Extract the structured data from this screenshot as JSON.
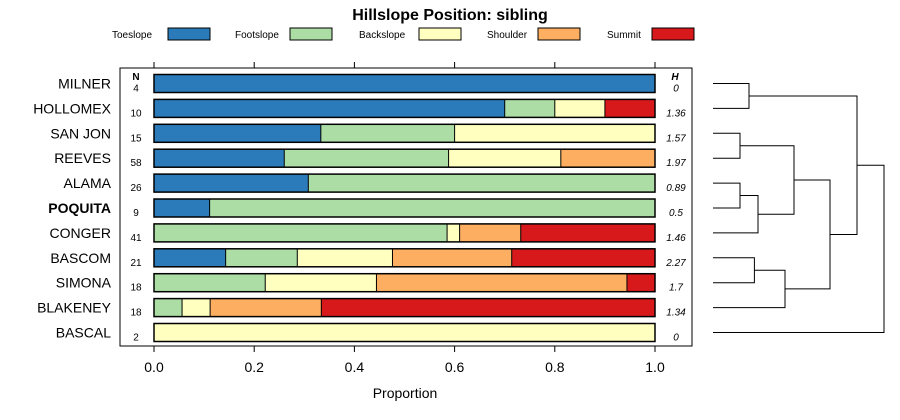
{
  "chart_data": {
    "type": "bar",
    "orientation": "horizontal",
    "stacked": true,
    "title": "Hillslope Position: sibling",
    "xlabel": "Proportion",
    "xlim": [
      0,
      1
    ],
    "x_ticks": [
      "0.0",
      "0.2",
      "0.4",
      "0.6",
      "0.8",
      "1.0"
    ],
    "n_header": "N",
    "h_header": "H",
    "highlight_row": "POQUITA",
    "categories": [
      "Toeslope",
      "Footslope",
      "Backslope",
      "Shoulder",
      "Summit"
    ],
    "colors": {
      "Toeslope": "#2b7bba",
      "Footslope": "#abdda4",
      "Backslope": "#ffffbf",
      "Shoulder": "#fdae61",
      "Summit": "#d7191c"
    },
    "rows": [
      {
        "name": "MILNER",
        "n": "4",
        "h": "0",
        "values": [
          1.0,
          0,
          0,
          0,
          0
        ]
      },
      {
        "name": "HOLLOMEX",
        "n": "10",
        "h": "1.36",
        "values": [
          0.7,
          0.1,
          0.1,
          0,
          0.1
        ]
      },
      {
        "name": "SAN JON",
        "n": "15",
        "h": "1.57",
        "values": [
          0.333,
          0.267,
          0.4,
          0,
          0
        ]
      },
      {
        "name": "REEVES",
        "n": "58",
        "h": "1.97",
        "values": [
          0.26,
          0.328,
          0.224,
          0.188,
          0
        ]
      },
      {
        "name": "ALAMA",
        "n": "26",
        "h": "0.89",
        "values": [
          0.308,
          0.692,
          0,
          0,
          0
        ]
      },
      {
        "name": "POQUITA",
        "n": "9",
        "h": "0.5",
        "values": [
          0.111,
          0.889,
          0,
          0,
          0
        ]
      },
      {
        "name": "CONGER",
        "n": "41",
        "h": "1.46",
        "values": [
          0,
          0.585,
          0.025,
          0.122,
          0.268
        ]
      },
      {
        "name": "BASCOM",
        "n": "21",
        "h": "2.27",
        "values": [
          0.143,
          0.143,
          0.19,
          0.238,
          0.286
        ]
      },
      {
        "name": "SIMONA",
        "n": "18",
        "h": "1.7",
        "values": [
          0,
          0.222,
          0.222,
          0.5,
          0.056
        ]
      },
      {
        "name": "BLAKENEY",
        "n": "18",
        "h": "1.34",
        "values": [
          0,
          0.056,
          0.056,
          0.222,
          0.666
        ]
      },
      {
        "name": "BASCAL",
        "n": "2",
        "h": "0",
        "values": [
          0,
          0,
          1.0,
          0,
          0
        ]
      }
    ],
    "dendrogram": {
      "merges": [
        {
          "a": "MILNER",
          "b": "HOLLOMEX",
          "height": 0.2
        },
        {
          "a": "SAN JON",
          "b": "REEVES",
          "height": 0.15
        },
        {
          "a": "ALAMA",
          "b": "POQUITA",
          "height": 0.15
        },
        {
          "a": "ALAMA|POQUITA",
          "b": "CONGER",
          "height": 0.25
        },
        {
          "a": "SAN JON|REEVES",
          "b": "ALAMA|POQUITA|CONGER",
          "height": 0.45
        },
        {
          "a": "BASCOM",
          "b": "SIMONA",
          "height": 0.23
        },
        {
          "a": "BASCOM|SIMONA",
          "b": "BLAKENEY",
          "height": 0.4
        },
        {
          "a": "SAN JON|REEVES|ALAMA|POQUITA|CONGER",
          "b": "BASCOM|SIMONA|BLAKENEY",
          "height": 0.65
        },
        {
          "a": "MILNER|HOLLOMEX",
          "b": "SAN JON|REEVES|ALAMA|POQUITA|CONGER|BASCOM|SIMONA|BLAKENEY",
          "height": 0.8
        },
        {
          "a": "MILNER|HOLLOMEX|SAN JON|REEVES|ALAMA|POQUITA|CONGER|BASCOM|SIMONA|BLAKENEY",
          "b": "BASCAL",
          "height": 0.95
        }
      ]
    }
  }
}
